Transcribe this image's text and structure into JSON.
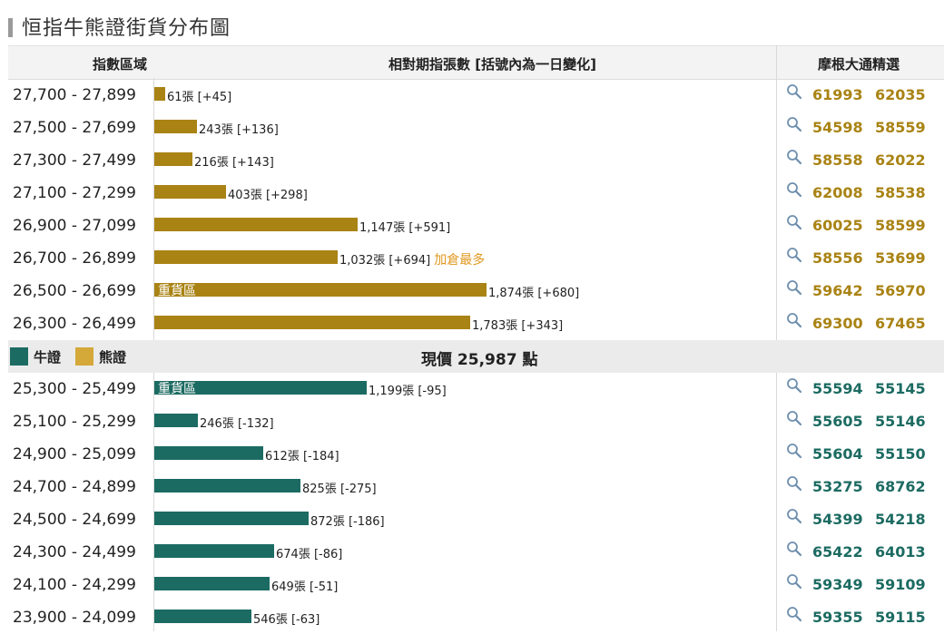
{
  "page": {
    "title": "恒指牛熊證街貨分布圖"
  },
  "header": {
    "col_range": "指數區域",
    "col_contracts": "相對期指張數 [括號內為一日變化]",
    "col_picks": "摩根大通精選"
  },
  "colors": {
    "bear": "#a98314",
    "bull": "#1c6b62",
    "note": "#e09820",
    "legend_bear": "#d4a93a"
  },
  "legend": {
    "bull_label": "牛證",
    "bear_label": "熊證"
  },
  "current_price": {
    "prefix": "現價",
    "value": "25,987",
    "unit": "點"
  },
  "chart_data": {
    "type": "bar",
    "orientation": "horizontal",
    "title": "恒指牛熊證街貨分布圖",
    "unit": "張",
    "bear_rows": [
      {
        "range": "27,700 - 27,899",
        "value": 61,
        "label": "61張 [+45]",
        "inner": "",
        "note": "",
        "codes": [
          "61993",
          "62035"
        ]
      },
      {
        "range": "27,500 - 27,699",
        "value": 243,
        "label": "243張 [+136]",
        "inner": "",
        "note": "",
        "codes": [
          "54598",
          "58559"
        ]
      },
      {
        "range": "27,300 - 27,499",
        "value": 216,
        "label": "216張 [+143]",
        "inner": "",
        "note": "",
        "codes": [
          "58558",
          "62022"
        ]
      },
      {
        "range": "27,100 - 27,299",
        "value": 403,
        "label": "403張 [+298]",
        "inner": "",
        "note": "",
        "codes": [
          "62008",
          "58538"
        ]
      },
      {
        "range": "26,900 - 27,099",
        "value": 1147,
        "label": "1,147張 [+591]",
        "inner": "",
        "note": "",
        "codes": [
          "60025",
          "58599"
        ]
      },
      {
        "range": "26,700 - 26,899",
        "value": 1032,
        "label": "1,032張 [+694]",
        "inner": "",
        "note": "加倉最多",
        "codes": [
          "58556",
          "53699"
        ]
      },
      {
        "range": "26,500 - 26,699",
        "value": 1874,
        "label": "1,874張 [+680]",
        "inner": "重貨區",
        "note": "",
        "codes": [
          "59642",
          "56970"
        ]
      },
      {
        "range": "26,300 - 26,499",
        "value": 1783,
        "label": "1,783張 [+343]",
        "inner": "",
        "note": "",
        "codes": [
          "69300",
          "67465"
        ]
      }
    ],
    "bull_rows": [
      {
        "range": "25,300 - 25,499",
        "value": 1199,
        "label": "1,199張 [-95]",
        "inner": "重貨區",
        "note": "",
        "codes": [
          "55594",
          "55145"
        ]
      },
      {
        "range": "25,100 - 25,299",
        "value": 246,
        "label": "246張 [-132]",
        "inner": "",
        "note": "",
        "codes": [
          "55605",
          "55146"
        ]
      },
      {
        "range": "24,900 - 25,099",
        "value": 612,
        "label": "612張 [-184]",
        "inner": "",
        "note": "",
        "codes": [
          "55604",
          "55150"
        ]
      },
      {
        "range": "24,700 - 24,899",
        "value": 825,
        "label": "825張 [-275]",
        "inner": "",
        "note": "",
        "codes": [
          "53275",
          "68762"
        ]
      },
      {
        "range": "24,500 - 24,699",
        "value": 872,
        "label": "872張 [-186]",
        "inner": "",
        "note": "",
        "codes": [
          "54399",
          "54218"
        ]
      },
      {
        "range": "24,300 - 24,499",
        "value": 674,
        "label": "674張 [-86]",
        "inner": "",
        "note": "",
        "codes": [
          "65422",
          "64013"
        ]
      },
      {
        "range": "24,100 - 24,299",
        "value": 649,
        "label": "649張 [-51]",
        "inner": "",
        "note": "",
        "codes": [
          "59349",
          "59109"
        ]
      },
      {
        "range": "23,900 - 24,099",
        "value": 546,
        "label": "546張 [-63]",
        "inner": "",
        "note": "",
        "codes": [
          "59355",
          "59115"
        ]
      }
    ]
  }
}
